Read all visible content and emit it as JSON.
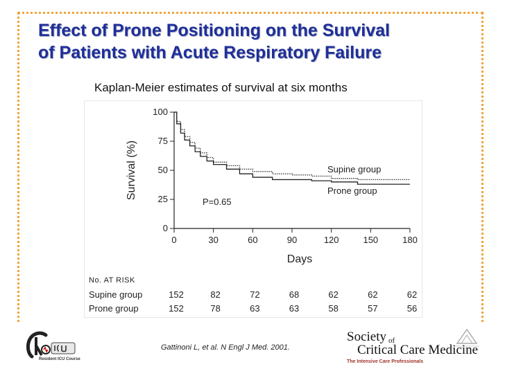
{
  "slide": {
    "title_line1": "Effect of Prone Positioning on the Survival",
    "title_line2": "of Patients with Acute Respiratory Failure",
    "subtitle": "Kaplan-Meier estimates of survival at six months",
    "citation": "Gattinoni L, et al. N Engl J Med. 2001.",
    "colors": {
      "title": "#1f2f9a",
      "frame": "#f0a43a",
      "sccm_tag": "#a0342a"
    }
  },
  "logos": {
    "icu": {
      "caption": "Resident ICU Course",
      "icon": "icu-logo-icon"
    },
    "sccm": {
      "society": "Society",
      "of": "of",
      "name": "Critical Care Medicine",
      "tagline": "The Intensive Care Professionals",
      "icon": "sccm-logo-icon"
    }
  },
  "chart_data": {
    "type": "line",
    "title": "",
    "xlabel": "Days",
    "ylabel": "Survival (%)",
    "xlim": [
      0,
      180
    ],
    "ylim": [
      0,
      100
    ],
    "x_ticks": [
      0,
      30,
      60,
      90,
      120,
      150,
      180
    ],
    "y_ticks": [
      0,
      25,
      50,
      75,
      100
    ],
    "grid": false,
    "annotation": "P=0.65",
    "series": [
      {
        "name": "Supine group",
        "points": [
          [
            0,
            100
          ],
          [
            2,
            92
          ],
          [
            5,
            85
          ],
          [
            8,
            79
          ],
          [
            12,
            74
          ],
          [
            16,
            69
          ],
          [
            20,
            65
          ],
          [
            25,
            61
          ],
          [
            30,
            57
          ],
          [
            40,
            54
          ],
          [
            50,
            51
          ],
          [
            60,
            49
          ],
          [
            75,
            47
          ],
          [
            90,
            46
          ],
          [
            105,
            45
          ],
          [
            120,
            43
          ],
          [
            140,
            42
          ],
          [
            160,
            42
          ],
          [
            180,
            42
          ]
        ]
      },
      {
        "name": "Prone group",
        "points": [
          [
            0,
            100
          ],
          [
            2,
            90
          ],
          [
            5,
            82
          ],
          [
            8,
            76
          ],
          [
            12,
            71
          ],
          [
            16,
            66
          ],
          [
            20,
            62
          ],
          [
            25,
            58
          ],
          [
            30,
            55
          ],
          [
            40,
            51
          ],
          [
            50,
            47
          ],
          [
            60,
            44
          ],
          [
            75,
            42
          ],
          [
            90,
            42
          ],
          [
            105,
            41
          ],
          [
            120,
            40
          ],
          [
            140,
            38
          ],
          [
            160,
            38
          ],
          [
            180,
            38
          ]
        ]
      }
    ],
    "risk_table": {
      "header": "No. AT RISK",
      "rows": [
        {
          "label": "Supine group",
          "values": [
            "152",
            "82",
            "72",
            "68",
            "62",
            "62",
            "62"
          ]
        },
        {
          "label": "Prone group",
          "values": [
            "152",
            "78",
            "63",
            "63",
            "58",
            "57",
            "56"
          ]
        }
      ]
    }
  }
}
